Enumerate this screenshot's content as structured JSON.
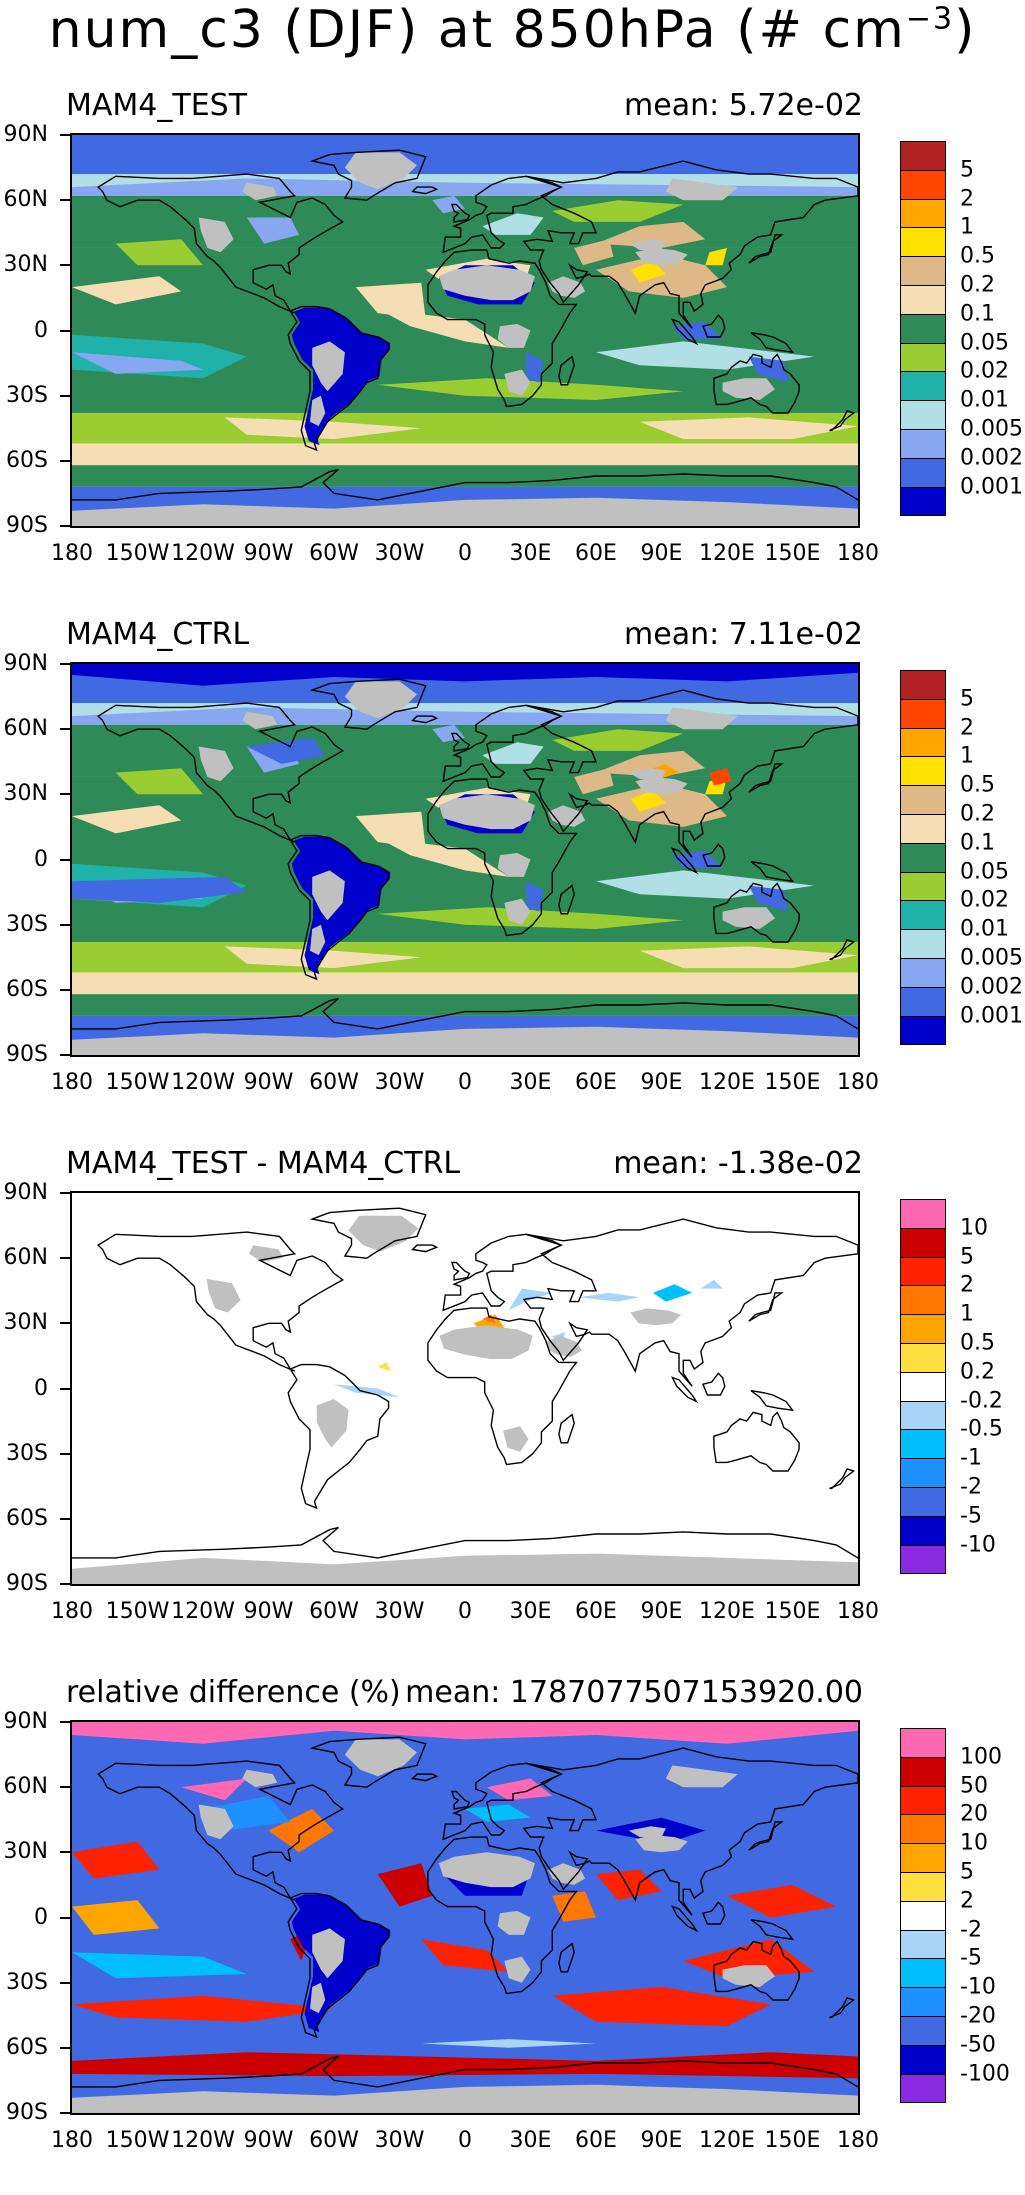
{
  "figure": {
    "title_main": "num_c3 (DJF) at 850hPa (# cm",
    "title_exp": "−3",
    "title_close": ")"
  },
  "axes": {
    "lat_labels": [
      "90N",
      "60N",
      "30N",
      "0",
      "30S",
      "60S",
      "90S"
    ],
    "lon_labels": [
      "180",
      "150W",
      "120W",
      "90W",
      "60W",
      "30W",
      "0",
      "30E",
      "60E",
      "90E",
      "120E",
      "150E",
      "180"
    ]
  },
  "panels": [
    {
      "title": "MAM4_TEST",
      "mean": "mean: 5.72e-02",
      "variant": "test",
      "colorbar": {
        "labels": [
          "5",
          "2",
          "1",
          "0.5",
          "0.2",
          "0.1",
          "0.05",
          "0.02",
          "0.01",
          "0.005",
          "0.002",
          "0.001"
        ],
        "colors": [
          "#b22222",
          "#ff4500",
          "#ffa500",
          "#ffe000",
          "#deb887",
          "#f5deb3",
          "#2e8b57",
          "#9acd32",
          "#20b2aa",
          "#b0e0e6",
          "#87a8f0",
          "#4169e1",
          "#0000cd"
        ]
      }
    },
    {
      "title": "MAM4_CTRL",
      "mean": "mean: 7.11e-02",
      "variant": "ctrl",
      "colorbar": {
        "labels": [
          "5",
          "2",
          "1",
          "0.5",
          "0.2",
          "0.1",
          "0.05",
          "0.02",
          "0.01",
          "0.005",
          "0.002",
          "0.001"
        ],
        "colors": [
          "#b22222",
          "#ff4500",
          "#ffa500",
          "#ffe000",
          "#deb887",
          "#f5deb3",
          "#2e8b57",
          "#9acd32",
          "#20b2aa",
          "#b0e0e6",
          "#87a8f0",
          "#4169e1",
          "#0000cd"
        ]
      }
    },
    {
      "title": "MAM4_TEST - MAM4_CTRL",
      "mean": "mean: -1.38e-02",
      "variant": "diff",
      "colorbar": {
        "labels": [
          "10",
          "5",
          "2",
          "1",
          "0.5",
          "0.2",
          "-0.2",
          "-0.5",
          "-1",
          "-2",
          "-5",
          "-10"
        ],
        "colors": [
          "#ff69b4",
          "#cc0000",
          "#ff2200",
          "#ff7700",
          "#ffa500",
          "#ffe040",
          "#ffffff",
          "#a8d4f8",
          "#00bfff",
          "#1e90ff",
          "#4169e1",
          "#0000cd",
          "#8a2be2"
        ]
      }
    },
    {
      "title": "relative difference (%)",
      "mean": "mean: 1787077507153920.00",
      "variant": "rel",
      "colorbar": {
        "labels": [
          "100",
          "50",
          "20",
          "10",
          "5",
          "2",
          "-2",
          "-5",
          "-10",
          "-20",
          "-50",
          "-100"
        ],
        "colors": [
          "#ff69b4",
          "#cc0000",
          "#ff2200",
          "#ff7700",
          "#ffa500",
          "#ffe040",
          "#ffffff",
          "#a8d4f8",
          "#00bfff",
          "#1e90ff",
          "#4169e1",
          "#0000cd",
          "#8a2be2"
        ]
      }
    }
  ]
}
